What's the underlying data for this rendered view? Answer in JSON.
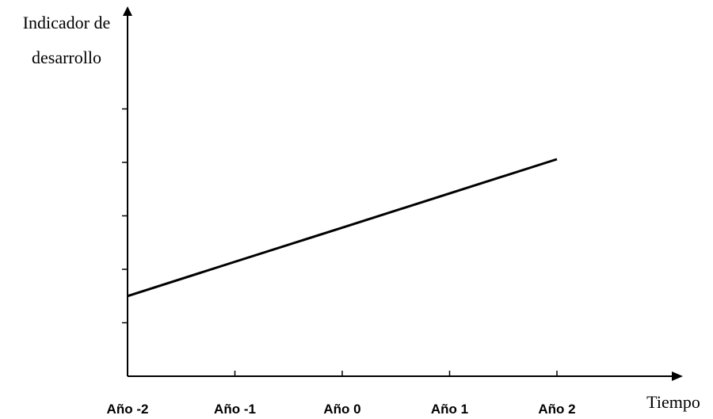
{
  "chart_data": {
    "type": "line",
    "title": "",
    "ylabel_lines": [
      "Indicador de",
      "desarrollo"
    ],
    "xlabel": "Tiempo",
    "categories": [
      "Año -2",
      "Año -1",
      "Año 0",
      "Año 1",
      "Año 2"
    ],
    "x": [
      -2,
      -1,
      0,
      1,
      2
    ],
    "series": [
      {
        "values": [
          1.5,
          2.14,
          2.78,
          3.42,
          4.06
        ]
      }
    ],
    "ylim": [
      0,
      6.5
    ],
    "xlim": [
      -2,
      2.75
    ],
    "y_ticks": [
      1,
      2,
      3,
      4,
      5
    ],
    "grid": false,
    "legend": "none",
    "line_color": "#000000"
  }
}
